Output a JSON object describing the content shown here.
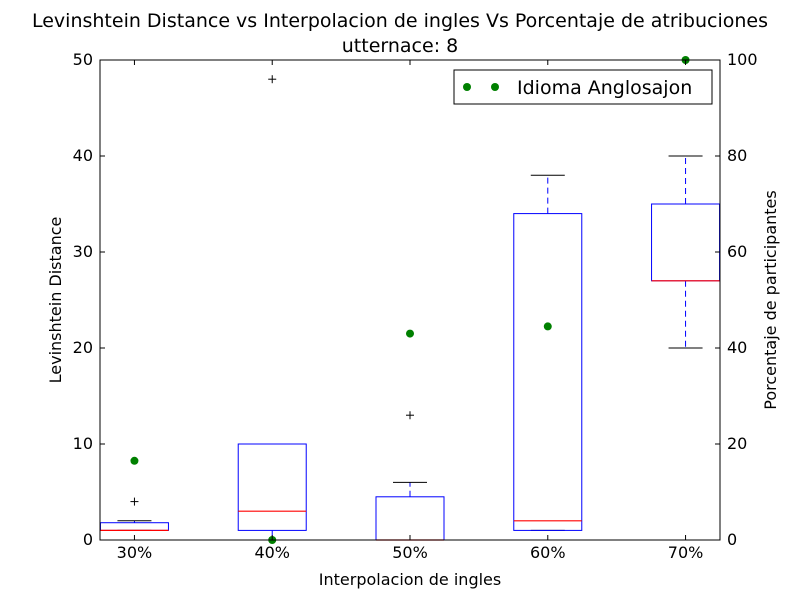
{
  "chart_data": {
    "type": "box",
    "title": "Levinshtein Distance vs Interpolacion de ingles Vs Porcentaje de atribuciones",
    "subtitle": "utternace: 8",
    "xlabel": "Interpolacion de ingles",
    "ylabel_left": "Levinshtein Distance",
    "ylabel_right": "Porcentaje de participantes",
    "categories": [
      "30%",
      "40%",
      "50%",
      "60%",
      "70%"
    ],
    "ylim_left": [
      0,
      50
    ],
    "yticks_left": [
      0,
      10,
      20,
      30,
      40,
      50
    ],
    "ylim_right": [
      0,
      100
    ],
    "yticks_right": [
      0,
      20,
      40,
      60,
      80,
      100
    ],
    "grid": false,
    "boxes": [
      {
        "category": "30%",
        "whisker_low": 1,
        "q1": 1,
        "median": 1,
        "q3": 1.8,
        "whisker_high": 2,
        "outliers": [
          4
        ]
      },
      {
        "category": "40%",
        "whisker_low": 0,
        "q1": 1,
        "median": 3,
        "q3": 10,
        "whisker_high": 10,
        "outliers": [
          48
        ]
      },
      {
        "category": "50%",
        "whisker_low": 0,
        "q1": 0,
        "median": 0,
        "q3": 4.5,
        "whisker_high": 6,
        "outliers": [
          13
        ]
      },
      {
        "category": "60%",
        "whisker_low": 1,
        "q1": 1,
        "median": 2,
        "q3": 34,
        "whisker_high": 38,
        "outliers": []
      },
      {
        "category": "70%",
        "whisker_low": 20,
        "q1": 27,
        "median": 27,
        "q3": 35,
        "whisker_high": 40,
        "outliers": []
      }
    ],
    "series": [
      {
        "name": "Idioma Anglosajon",
        "axis": "right",
        "values": [
          16.5,
          0,
          43,
          44.5,
          100
        ]
      }
    ],
    "legend": {
      "position": "top-right",
      "entries": [
        "Idioma Anglosajon"
      ]
    },
    "colors": {
      "box": "#0000ff",
      "median": "#ff0000",
      "whisker_cap": "#000000",
      "outlier": "#000000",
      "series": "#008000"
    }
  }
}
